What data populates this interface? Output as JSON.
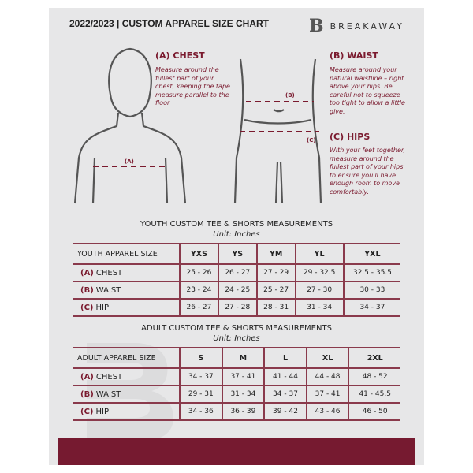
{
  "header": {
    "title": "2022/2023  |  CUSTOM APPAREL SIZE CHART",
    "brand": "BREAKAWAY",
    "logo_letter": "B"
  },
  "guide": {
    "chest": {
      "title": "(A) CHEST",
      "text": "Measure around the fullest part of your chest, keeping the tape measure parallel to the floor",
      "marker": "(A)"
    },
    "waist": {
      "title": "(B) WAIST",
      "text": "Measure around your natural waistline – right above your hips. Be careful not to squeeze too tight to allow a little give.",
      "marker": "(B)"
    },
    "hips": {
      "title": "(C) HIPS",
      "text": "With your feet together, measure around the fullest part of your hips to ensure you'll have enough room to move comfortably.",
      "marker": "(C)"
    }
  },
  "accent": "#761a30",
  "youth": {
    "title": "YOUTH CUSTOM TEE & SHORTS MEASUREMENTS",
    "unit": "Unit: Inches",
    "header": "YOUTH APPAREL SIZE",
    "sizes": [
      "YXS",
      "YS",
      "YM",
      "YL",
      "YXL"
    ],
    "rows": [
      {
        "key": "(A)",
        "label": "CHEST",
        "values": [
          "25 - 26",
          "26 - 27",
          "27 - 29",
          "29 - 32.5",
          "32.5 - 35.5"
        ]
      },
      {
        "key": "(B)",
        "label": "WAIST",
        "values": [
          "23 - 24",
          "24 - 25",
          "25 - 27",
          "27 - 30",
          "30 - 33"
        ]
      },
      {
        "key": "(C)",
        "label": "HIP",
        "values": [
          "26 - 27",
          "27 - 28",
          "28 - 31",
          "31 - 34",
          "34 - 37"
        ]
      }
    ]
  },
  "adult": {
    "title": "ADULT CUSTOM TEE & SHORTS MEASUREMENTS",
    "unit": "Unit: Inches",
    "header": "ADULT APPAREL SIZE",
    "sizes": [
      "S",
      "M",
      "L",
      "XL",
      "2XL"
    ],
    "rows": [
      {
        "key": "(A)",
        "label": "CHEST",
        "values": [
          "34 - 37",
          "37 - 41",
          "41 - 44",
          "44 - 48",
          "48 - 52"
        ]
      },
      {
        "key": "(B)",
        "label": "WAIST",
        "values": [
          "29 - 31",
          "31 - 34",
          "34 - 37",
          "37 - 41",
          "41 - 45.5"
        ]
      },
      {
        "key": "(C)",
        "label": "HIP",
        "values": [
          "34 - 36",
          "36 - 39",
          "39 - 42",
          "43 - 46",
          "46 - 50"
        ]
      }
    ]
  }
}
